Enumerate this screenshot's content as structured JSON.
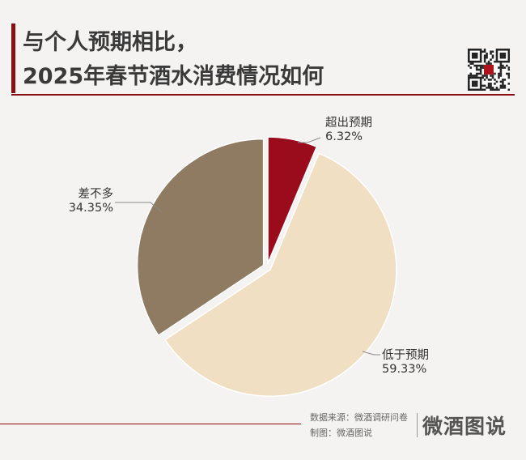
{
  "header": {
    "title_line1": "与个人预期相比，",
    "title_line2": "2025年春节酒水消费情况如何"
  },
  "chart_data": {
    "type": "pie",
    "title": "与个人预期相比，2025年春节酒水消费情况如何",
    "slices": [
      {
        "label": "超出预期",
        "value": 6.32,
        "value_label": "6.32%",
        "color": "#9a0c1c"
      },
      {
        "label": "低于预期",
        "value": 59.33,
        "value_label": "59.33%",
        "color": "#f0dfc3"
      },
      {
        "label": "差不多",
        "value": 34.35,
        "value_label": "34.35%",
        "color": "#8e7b62"
      }
    ],
    "start_angle_deg": 0,
    "direction": "clockwise",
    "exploded": true
  },
  "footer": {
    "source": "数据来源：微酒调研问卷",
    "credit": "制图：微酒图说",
    "logo": "微酒图说"
  }
}
